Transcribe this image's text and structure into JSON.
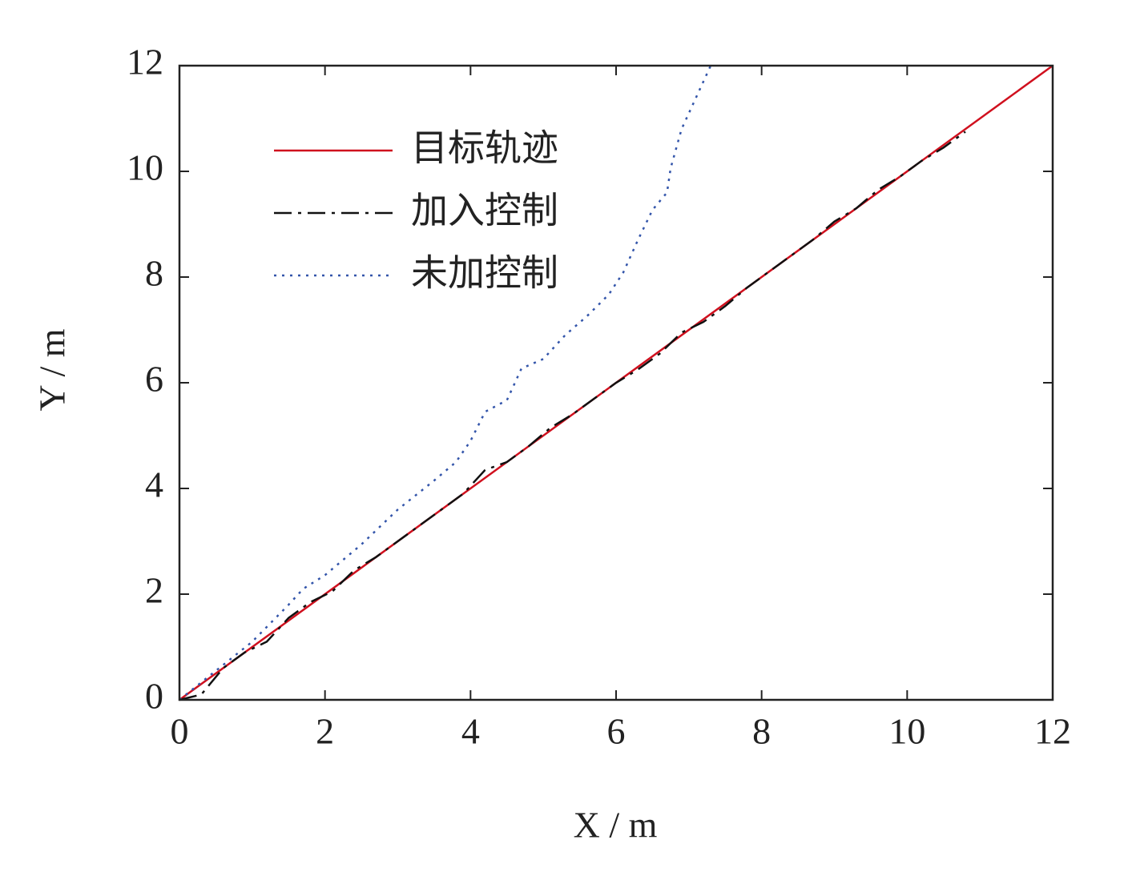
{
  "chart_data": {
    "type": "line",
    "xlabel": "X / m",
    "ylabel": "Y / m",
    "xlim": [
      0,
      12
    ],
    "ylim": [
      0,
      12
    ],
    "xticks": [
      0,
      2,
      4,
      6,
      8,
      10,
      12
    ],
    "yticks": [
      0,
      2,
      4,
      6,
      8,
      10,
      12
    ],
    "legend": "upper left",
    "grid": false,
    "series": [
      {
        "name": "目标轨迹",
        "color": "#d0101e",
        "dash": "solid",
        "x": [
          0,
          12
        ],
        "values": [
          0,
          12
        ]
      },
      {
        "name": "加入控制",
        "color": "#111111",
        "dash": "dashdot",
        "x": [
          0,
          0.3,
          0.6,
          0.9,
          1.2,
          1.5,
          1.8,
          2.1,
          2.4,
          2.7,
          3.0,
          3.3,
          3.6,
          3.9,
          4.2,
          4.5,
          4.8,
          5.1,
          5.4,
          5.7,
          6.0,
          6.3,
          6.6,
          6.9,
          7.2,
          7.5,
          7.8,
          8.1,
          8.4,
          8.7,
          9.0,
          9.3,
          9.6,
          9.9,
          10.2,
          10.5,
          10.8
        ],
        "values": [
          0,
          0.1,
          0.6,
          0.9,
          1.1,
          1.55,
          1.85,
          2.05,
          2.45,
          2.7,
          3.0,
          3.3,
          3.6,
          3.9,
          4.35,
          4.5,
          4.8,
          5.15,
          5.4,
          5.7,
          6.0,
          6.25,
          6.55,
          6.95,
          7.15,
          7.45,
          7.8,
          8.1,
          8.4,
          8.7,
          9.05,
          9.3,
          9.65,
          9.9,
          10.2,
          10.45,
          10.75
        ]
      },
      {
        "name": "未加控制",
        "color": "#3355aa",
        "dash": "dotted",
        "x": [
          0,
          0.5,
          1.0,
          1.5,
          1.7,
          2.0,
          2.5,
          3.0,
          3.5,
          3.8,
          4.0,
          4.2,
          4.5,
          4.7,
          5.0,
          5.3,
          5.6,
          5.9,
          6.1,
          6.3,
          6.5,
          6.7,
          6.75,
          6.9,
          7.1,
          7.3
        ],
        "values": [
          0,
          0.55,
          1.1,
          1.8,
          2.1,
          2.36,
          2.94,
          3.6,
          4.15,
          4.5,
          4.9,
          5.45,
          5.67,
          6.27,
          6.45,
          6.9,
          7.26,
          7.67,
          8.09,
          8.7,
          9.27,
          9.6,
          10.06,
          10.8,
          11.4,
          12
        ]
      }
    ]
  }
}
